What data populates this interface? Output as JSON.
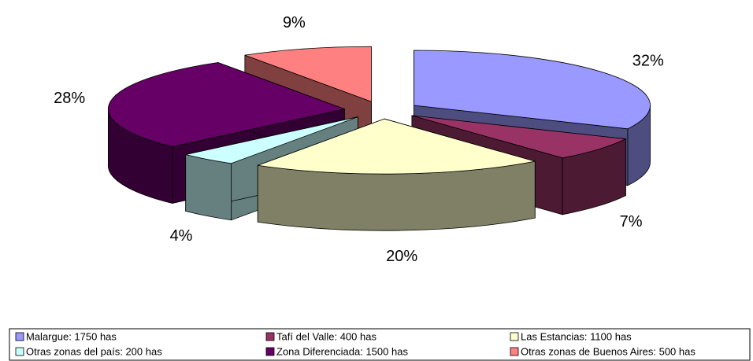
{
  "chart_data": {
    "type": "pie",
    "categories": [
      "Malargue: 1750 has",
      "Tafí del Valle: 400 has",
      "Las Estancias: 1100 has",
      "Otras zonas del país: 200 has",
      "Zona Diferenciada: 1500 has",
      "Otras zonas de Buenos Aires: 500 has"
    ],
    "values": [
      32,
      7,
      20,
      4,
      28,
      9
    ],
    "value_labels": [
      "32%",
      "7%",
      "20%",
      "4%",
      "28%",
      "9%"
    ],
    "colors": [
      "#9999ff",
      "#993366",
      "#ffffcc",
      "#ccffff",
      "#660066",
      "#ff8080"
    ],
    "legend": "bottom"
  }
}
